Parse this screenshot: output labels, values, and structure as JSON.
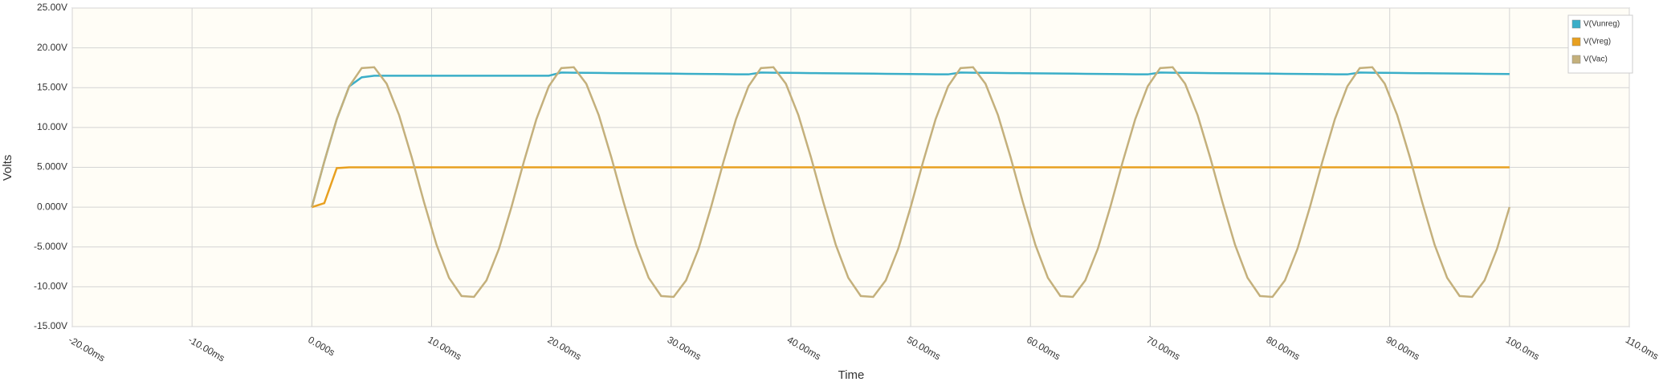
{
  "chart_data": {
    "type": "line",
    "y_label": "Volts",
    "x_label": "Time",
    "xlim": [
      -20,
      110
    ],
    "xticks": [
      {
        "value": -20,
        "label": "-20.00ms"
      },
      {
        "value": -10,
        "label": "-10.00ms"
      },
      {
        "value": 0,
        "label": "0.000s"
      },
      {
        "value": 10,
        "label": "10.00ms"
      },
      {
        "value": 20,
        "label": "20.00ms"
      },
      {
        "value": 30,
        "label": "30.00ms"
      },
      {
        "value": 40,
        "label": "40.00ms"
      },
      {
        "value": 50,
        "label": "50.00ms"
      },
      {
        "value": 60,
        "label": "60.00ms"
      },
      {
        "value": 70,
        "label": "70.00ms"
      },
      {
        "value": 80,
        "label": "80.00ms"
      },
      {
        "value": 90,
        "label": "90.00ms"
      },
      {
        "value": 100,
        "label": "100.0ms"
      },
      {
        "value": 110,
        "label": "110.0ms"
      }
    ],
    "ylim": [
      -15,
      25
    ],
    "yticks": [
      {
        "value": 25,
        "label": "25.00V"
      },
      {
        "value": 20,
        "label": "20.00V"
      },
      {
        "value": 15,
        "label": "15.00V"
      },
      {
        "value": 10,
        "label": "10.00V"
      },
      {
        "value": 5,
        "label": "5.000V"
      },
      {
        "value": 0,
        "label": "0.000V"
      },
      {
        "value": -5,
        "label": "-5.000V"
      },
      {
        "value": -10,
        "label": "-10.00V"
      },
      {
        "value": -15,
        "label": "-15.00V"
      }
    ],
    "grid": true,
    "legend": "top-right",
    "x": [
      0,
      1.042,
      2.083,
      3.125,
      4.167,
      5.208,
      6.25,
      7.292,
      8.333,
      9.375,
      10.417,
      11.458,
      12.5,
      13.542,
      14.583,
      15.625,
      16.667,
      17.708,
      18.75,
      19.792,
      20.833,
      21.875,
      22.917,
      23.958,
      25,
      26.042,
      27.083,
      28.125,
      29.167,
      30.208,
      31.25,
      32.292,
      33.333,
      34.375,
      35.417,
      36.458,
      37.5,
      38.542,
      39.583,
      40.625,
      41.667,
      42.708,
      43.75,
      44.792,
      45.833,
      46.875,
      47.917,
      48.958,
      50,
      51.042,
      52.083,
      53.125,
      54.167,
      55.208,
      56.25,
      57.292,
      58.333,
      59.375,
      60.417,
      61.458,
      62.5,
      63.542,
      64.583,
      65.625,
      66.667,
      67.708,
      68.75,
      69.792,
      70.833,
      71.875,
      72.917,
      73.958,
      75,
      76.042,
      77.083,
      78.125,
      79.167,
      80.208,
      81.25,
      82.292,
      83.333,
      84.375,
      85.417,
      86.458,
      87.5,
      88.542,
      89.583,
      90.625,
      91.667,
      92.708,
      93.75,
      94.792,
      95.833,
      96.875,
      97.917,
      98.958,
      100
    ],
    "series": [
      {
        "name": "V(Vunreg)",
        "color": "#3aaec8",
        "values": [
          0,
          5.71,
          11.04,
          15.17,
          16.3,
          16.5,
          16.5,
          16.5,
          16.5,
          16.5,
          16.5,
          16.5,
          16.5,
          16.5,
          16.5,
          16.5,
          16.5,
          16.5,
          16.5,
          16.5,
          16.9,
          16.88,
          16.86,
          16.85,
          16.83,
          16.82,
          16.8,
          16.79,
          16.77,
          16.76,
          16.74,
          16.73,
          16.71,
          16.7,
          16.68,
          16.67,
          16.9,
          16.88,
          16.86,
          16.85,
          16.83,
          16.82,
          16.8,
          16.79,
          16.77,
          16.76,
          16.74,
          16.73,
          16.71,
          16.7,
          16.68,
          16.67,
          16.9,
          16.88,
          16.86,
          16.85,
          16.83,
          16.82,
          16.8,
          16.79,
          16.77,
          16.76,
          16.74,
          16.73,
          16.71,
          16.7,
          16.68,
          16.67,
          16.9,
          16.88,
          16.86,
          16.85,
          16.83,
          16.82,
          16.8,
          16.79,
          16.77,
          16.76,
          16.74,
          16.73,
          16.71,
          16.7,
          16.68,
          16.67,
          16.9,
          16.88,
          16.86,
          16.85,
          16.83,
          16.82,
          16.8,
          16.79,
          16.77,
          16.76,
          16.74,
          16.73,
          16.71
        ]
      },
      {
        "name": "V(Vreg)",
        "color": "#e8a020",
        "values": [
          0,
          0.5,
          4.9,
          5,
          5,
          5,
          5,
          5,
          5,
          5,
          5,
          5,
          5,
          5,
          5,
          5,
          5,
          5,
          5,
          5,
          5,
          5,
          5,
          5,
          5,
          5,
          5,
          5,
          5,
          5,
          5,
          5,
          5,
          5,
          5,
          5,
          5,
          5,
          5,
          5,
          5,
          5,
          5,
          5,
          5,
          5,
          5,
          5,
          5,
          5,
          5,
          5,
          5,
          5,
          5,
          5,
          5,
          5,
          5,
          5,
          5,
          5,
          5,
          5,
          5,
          5,
          5,
          5,
          5,
          5,
          5,
          5,
          5,
          5,
          5,
          5,
          5,
          5,
          5,
          5,
          5,
          5,
          5,
          5,
          5,
          5,
          5,
          5,
          5,
          5,
          5,
          5,
          5,
          5,
          5,
          5,
          5
        ]
      },
      {
        "name": "V(Vac)",
        "color": "#c4b07c",
        "values": [
          0,
          5.71,
          11.04,
          15.17,
          17.46,
          17.57,
          15.49,
          11.54,
          6.3,
          0.59,
          -4.74,
          -8.87,
          -11.16,
          -11.27,
          -9.19,
          -5.24,
          0,
          5.71,
          11.04,
          15.17,
          17.46,
          17.57,
          15.49,
          11.54,
          6.3,
          0.59,
          -4.74,
          -8.87,
          -11.16,
          -11.27,
          -9.19,
          -5.24,
          0,
          5.71,
          11.04,
          15.17,
          17.46,
          17.57,
          15.49,
          11.54,
          6.3,
          0.59,
          -4.74,
          -8.87,
          -11.16,
          -11.27,
          -9.19,
          -5.24,
          0,
          5.71,
          11.04,
          15.17,
          17.46,
          17.57,
          15.49,
          11.54,
          6.3,
          0.59,
          -4.74,
          -8.87,
          -11.16,
          -11.27,
          -9.19,
          -5.24,
          0,
          5.71,
          11.04,
          15.17,
          17.46,
          17.57,
          15.49,
          11.54,
          6.3,
          0.59,
          -4.74,
          -8.87,
          -11.16,
          -11.27,
          -9.19,
          -5.24,
          0,
          5.71,
          11.04,
          15.17,
          17.46,
          17.57,
          15.49,
          11.54,
          6.3,
          0.59,
          -4.74,
          -8.87,
          -11.16,
          -11.27,
          -9.19,
          -5.24,
          0
        ]
      }
    ]
  }
}
